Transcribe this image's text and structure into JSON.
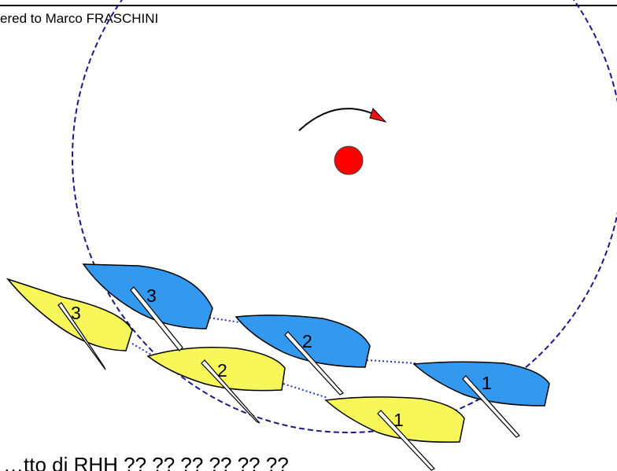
{
  "header": {
    "registration_text": "ered to Marco FRASCHINI"
  },
  "caption": {
    "text": "…tto di RHH ?? ?? ?? ?? ?? ??"
  },
  "colors": {
    "blue_boat": "#3399ee",
    "yellow_boat": "#f7f75a",
    "mark": "#ff0000",
    "zone_circle": "#1a1a8c",
    "link_line": "#2233cc"
  },
  "boats": {
    "blue": [
      {
        "number": "1"
      },
      {
        "number": "2"
      },
      {
        "number": "3"
      }
    ],
    "yellow": [
      {
        "number": "1"
      },
      {
        "number": "2"
      },
      {
        "number": "3"
      }
    ]
  },
  "icons": {
    "mark": "red-mark-circle",
    "rotation": "rotation-arrow-icon"
  }
}
